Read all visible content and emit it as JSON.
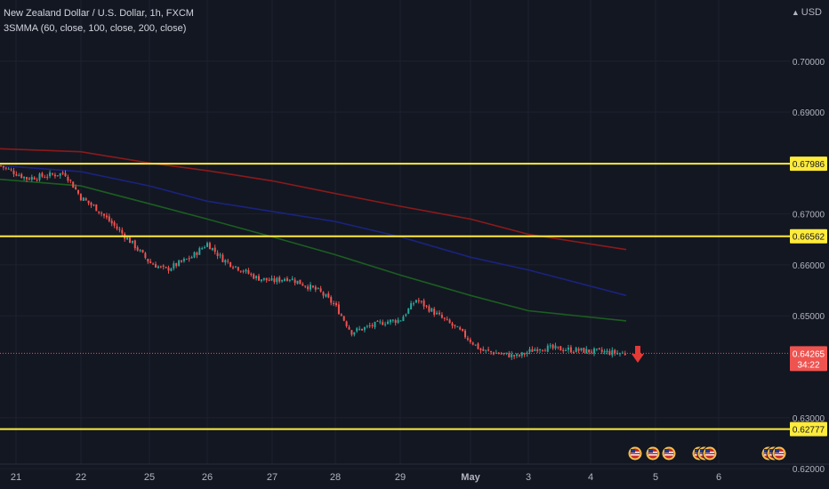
{
  "legend": {
    "title": "New Zealand Dollar / U.S. Dollar, 1h, FXCM",
    "indicator": "3SMMA (60, close, 100, close, 200, close)"
  },
  "currency": {
    "label": "USD",
    "arrow_icon": "caret-up-icon"
  },
  "countdown": "34:22",
  "colors": {
    "background": "#131722",
    "grid": "#1e222d",
    "up": "#26a69a",
    "down": "#ef5350",
    "sma60": "#1b5e20",
    "sma100": "#1a237e",
    "sma200": "#8b1a1a",
    "hline": "#ffeb3b",
    "price_label": "#ef5350",
    "axis_text": "#b2b5be"
  },
  "chart_data": {
    "type": "candlestick",
    "symbol": "NZDUSD",
    "timeframe": "1h",
    "ylim": [
      0.616,
      0.712
    ],
    "y_ticks": [
      "0.70000",
      "0.69000",
      "0.67000",
      "0.66000",
      "0.65000",
      "0.63000",
      "0.62000"
    ],
    "x_ticks": [
      "21",
      "22",
      "25",
      "26",
      "27",
      "28",
      "29",
      "May",
      "3",
      "4",
      "5",
      "6"
    ],
    "horizontal_lines": [
      {
        "value": 0.67986,
        "label": "0.67986"
      },
      {
        "value": 0.66562,
        "label": "0.66562"
      },
      {
        "value": 0.62777,
        "label": "0.62777"
      }
    ],
    "last_price": {
      "value": 0.64265,
      "label": "0.64265"
    },
    "signal": "down-arrow-icon",
    "price_path": [
      [
        "21",
        0.6795
      ],
      [
        "21",
        0.677
      ],
      [
        "22",
        0.678
      ],
      [
        "22",
        0.6732
      ],
      [
        "22",
        0.671
      ],
      [
        "25",
        0.664
      ],
      [
        "25",
        0.6605
      ],
      [
        "25",
        0.659
      ],
      [
        "26",
        0.6615
      ],
      [
        "26",
        0.6642
      ],
      [
        "26",
        0.661
      ],
      [
        "27",
        0.6575
      ],
      [
        "27",
        0.6568
      ],
      [
        "27",
        0.6575
      ],
      [
        "28",
        0.6548
      ],
      [
        "28",
        0.652
      ],
      [
        "28",
        0.6468
      ],
      [
        "29",
        0.6488
      ],
      [
        "29",
        0.6492
      ],
      [
        "29",
        0.6532
      ],
      [
        "May",
        0.647
      ],
      [
        "May",
        0.6432
      ],
      [
        "3",
        0.642
      ],
      [
        "3",
        0.6438
      ],
      [
        "4",
        0.6432
      ],
      [
        "4",
        0.6426
      ]
    ],
    "series": [
      {
        "name": "SMA 60",
        "points": [
          [
            "21",
            0.6768
          ],
          [
            "22",
            0.6755
          ],
          [
            "25",
            0.672
          ],
          [
            "26",
            0.669
          ],
          [
            "27",
            0.6655
          ],
          [
            "28",
            0.662
          ],
          [
            "29",
            0.658
          ],
          [
            "May",
            0.654
          ],
          [
            "3",
            0.651
          ],
          [
            "4",
            0.649
          ]
        ]
      },
      {
        "name": "SMA 100",
        "points": [
          [
            "21",
            0.6795
          ],
          [
            "22",
            0.6783
          ],
          [
            "25",
            0.6755
          ],
          [
            "26",
            0.6725
          ],
          [
            "27",
            0.6705
          ],
          [
            "28",
            0.6685
          ],
          [
            "29",
            0.6655
          ],
          [
            "May",
            0.6615
          ],
          [
            "3",
            0.659
          ],
          [
            "4",
            0.654
          ]
        ]
      },
      {
        "name": "SMA 200",
        "points": [
          [
            "21",
            0.6828
          ],
          [
            "22",
            0.6822
          ],
          [
            "25",
            0.68
          ],
          [
            "26",
            0.6785
          ],
          [
            "27",
            0.6765
          ],
          [
            "28",
            0.674
          ],
          [
            "29",
            0.6715
          ],
          [
            "May",
            0.669
          ],
          [
            "3",
            0.666
          ],
          [
            "4",
            0.663
          ]
        ]
      }
    ],
    "events": {
      "icon": "us-flag-icon",
      "groups": [
        [
          1,
          2
        ],
        [
          1
        ],
        [
          1,
          2,
          3
        ],
        [
          1,
          2,
          3
        ]
      ]
    }
  }
}
